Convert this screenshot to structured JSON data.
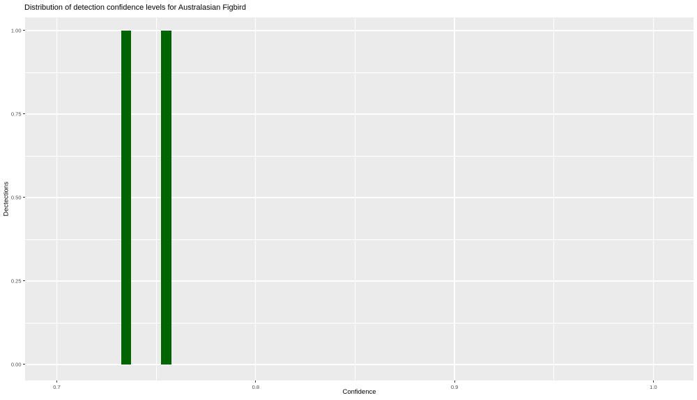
{
  "title": "Distribution of detection confidence levels for Australasian Figbird",
  "x_axis": {
    "label": "Confidence",
    "tick_labels": [
      "0.7",
      "0.8",
      "0.9",
      "1.0"
    ],
    "tick_values": [
      0.7,
      0.8,
      0.9,
      1.0
    ],
    "minor_tick_values": [
      0.75,
      0.85,
      0.95
    ]
  },
  "y_axis": {
    "label": "Dectections",
    "tick_labels": [
      "0.00",
      "0.25",
      "0.50",
      "0.75",
      "1.00"
    ],
    "tick_values": [
      0,
      0.25,
      0.5,
      0.75,
      1
    ],
    "minor_tick_values": [
      0.125,
      0.375,
      0.625,
      0.875
    ]
  },
  "chart_data": {
    "type": "bar",
    "title": "Distribution of detection confidence levels for Australasian Figbird",
    "xlabel": "Confidence",
    "ylabel": "Dectections",
    "bars": [
      {
        "x": 0.735,
        "height": 1.0
      },
      {
        "x": 0.755,
        "height": 1.0
      }
    ],
    "bar_width": 0.005,
    "xlim": [
      0.68405,
      1.02019
    ],
    "ylim": [
      -0.04792,
      1.03958
    ],
    "x_ticks": [
      0.7,
      0.8,
      0.9,
      1.0
    ],
    "y_ticks": [
      0,
      0.25,
      0.5,
      0.75,
      1
    ],
    "grid": true,
    "legend": false
  },
  "colors": {
    "figure_background": "#FFFFFF",
    "panel_background": "#EBEBEB",
    "gridline": "#FFFFFF",
    "bar_fill": "#006400",
    "tick_label_text": "#4D4D4D",
    "axis_title_text": "#000000",
    "title_text": "#000000",
    "tick_mark": "#333333"
  }
}
